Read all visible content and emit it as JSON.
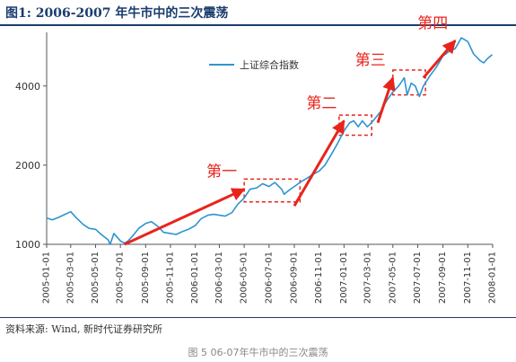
{
  "figure": {
    "title": "图1:    2006-2007 年牛市中的三次震荡",
    "source": "资料来源:  Wind,  新时代证券研究所",
    "caption": "图 5 06-07年牛市中的三次震荡"
  },
  "colors": {
    "line": "#2e94d0",
    "accent": "#e8241c",
    "title": "#1a3d6d"
  },
  "chart_data": {
    "type": "line",
    "series": [
      {
        "name": "上证综合指数",
        "points": [
          [
            "2005-01-01",
            1260
          ],
          [
            "2005-01-15",
            1240
          ],
          [
            "2005-02-01",
            1270
          ],
          [
            "2005-02-15",
            1300
          ],
          [
            "2005-03-01",
            1330
          ],
          [
            "2005-03-15",
            1260
          ],
          [
            "2005-04-01",
            1190
          ],
          [
            "2005-04-15",
            1150
          ],
          [
            "2005-05-01",
            1140
          ],
          [
            "2005-05-15",
            1090
          ],
          [
            "2005-06-01",
            1040
          ],
          [
            "2005-06-06",
            1000
          ],
          [
            "2005-06-15",
            1100
          ],
          [
            "2005-07-01",
            1030
          ],
          [
            "2005-07-11",
            1010
          ],
          [
            "2005-07-20",
            1030
          ],
          [
            "2005-08-01",
            1080
          ],
          [
            "2005-08-15",
            1150
          ],
          [
            "2005-09-01",
            1200
          ],
          [
            "2005-09-15",
            1220
          ],
          [
            "2005-10-01",
            1170
          ],
          [
            "2005-10-15",
            1110
          ],
          [
            "2005-11-01",
            1100
          ],
          [
            "2005-11-15",
            1090
          ],
          [
            "2005-12-01",
            1120
          ],
          [
            "2005-12-15",
            1140
          ],
          [
            "2006-01-01",
            1180
          ],
          [
            "2006-01-15",
            1250
          ],
          [
            "2006-02-01",
            1290
          ],
          [
            "2006-02-15",
            1300
          ],
          [
            "2006-03-01",
            1290
          ],
          [
            "2006-03-15",
            1280
          ],
          [
            "2006-04-01",
            1320
          ],
          [
            "2006-04-15",
            1420
          ],
          [
            "2006-05-01",
            1500
          ],
          [
            "2006-05-15",
            1620
          ],
          [
            "2006-06-01",
            1640
          ],
          [
            "2006-06-15",
            1700
          ],
          [
            "2006-07-01",
            1660
          ],
          [
            "2006-07-15",
            1720
          ],
          [
            "2006-08-01",
            1620
          ],
          [
            "2006-08-07",
            1550
          ],
          [
            "2006-08-20",
            1610
          ],
          [
            "2006-09-01",
            1660
          ],
          [
            "2006-09-15",
            1720
          ],
          [
            "2006-10-01",
            1780
          ],
          [
            "2006-10-15",
            1840
          ],
          [
            "2006-11-01",
            1900
          ],
          [
            "2006-11-15",
            2000
          ],
          [
            "2006-12-01",
            2200
          ],
          [
            "2006-12-15",
            2400
          ],
          [
            "2007-01-01",
            2700
          ],
          [
            "2007-01-15",
            2900
          ],
          [
            "2007-01-25",
            2950
          ],
          [
            "2007-02-05",
            2800
          ],
          [
            "2007-02-15",
            2950
          ],
          [
            "2007-02-27",
            2800
          ],
          [
            "2007-03-05",
            2850
          ],
          [
            "2007-03-15",
            2970
          ],
          [
            "2007-04-01",
            3200
          ],
          [
            "2007-04-15",
            3500
          ],
          [
            "2007-05-01",
            3800
          ],
          [
            "2007-05-15",
            4000
          ],
          [
            "2007-05-29",
            4300
          ],
          [
            "2007-06-05",
            3700
          ],
          [
            "2007-06-15",
            4100
          ],
          [
            "2007-06-25",
            4000
          ],
          [
            "2007-07-05",
            3650
          ],
          [
            "2007-07-15",
            4000
          ],
          [
            "2007-08-01",
            4400
          ],
          [
            "2007-08-15",
            4700
          ],
          [
            "2007-09-01",
            5200
          ],
          [
            "2007-09-15",
            5400
          ],
          [
            "2007-10-01",
            5550
          ],
          [
            "2007-10-16",
            6100
          ],
          [
            "2007-11-01",
            5900
          ],
          [
            "2007-11-15",
            5300
          ],
          [
            "2007-12-01",
            5000
          ],
          [
            "2007-12-10",
            4900
          ],
          [
            "2007-12-20",
            5100
          ],
          [
            "2007-12-31",
            5260
          ]
        ]
      }
    ],
    "yticks": [
      1000,
      2000,
      4000
    ],
    "ylim": [
      1000,
      6400
    ],
    "ylog": true,
    "xticks": [
      "2005-01-01",
      "2005-03-01",
      "2005-05-01",
      "2005-07-01",
      "2005-09-01",
      "2005-11-01",
      "2006-01-01",
      "2006-03-01",
      "2006-05-01",
      "2006-07-01",
      "2006-09-01",
      "2006-11-01",
      "2007-01-01",
      "2007-03-01",
      "2007-05-01",
      "2007-07-01",
      "2007-09-01",
      "2007-11-01",
      "2008-01-01"
    ],
    "xlim": [
      "2005-01-01",
      "2008-01-01"
    ],
    "legend": "top-left",
    "grid": false,
    "annotations": [
      {
        "label": "第一",
        "from": [
          "2005-07-11",
          1000
        ],
        "to": [
          "2006-05-01",
          1620
        ]
      },
      {
        "label": "第二",
        "from": [
          "2006-09-01",
          1400
        ],
        "to": [
          "2007-01-01",
          2950
        ]
      },
      {
        "label": "第三",
        "from": [
          "2007-03-25",
          2900
        ],
        "to": [
          "2007-05-01",
          4300
        ]
      },
      {
        "label": "第四",
        "from": [
          "2007-07-15",
          4300
        ],
        "to": [
          "2007-10-01",
          5950
        ]
      }
    ],
    "highlight_boxes": [
      {
        "x0": "2006-05-01",
        "x1": "2006-09-15",
        "y0": 1450,
        "y1": 1770
      },
      {
        "x0": "2006-12-20",
        "x1": "2007-03-10",
        "y0": 2600,
        "y1": 3100
      },
      {
        "x0": "2007-05-01",
        "x1": "2007-07-20",
        "y0": 3700,
        "y1": 4600
      }
    ]
  }
}
